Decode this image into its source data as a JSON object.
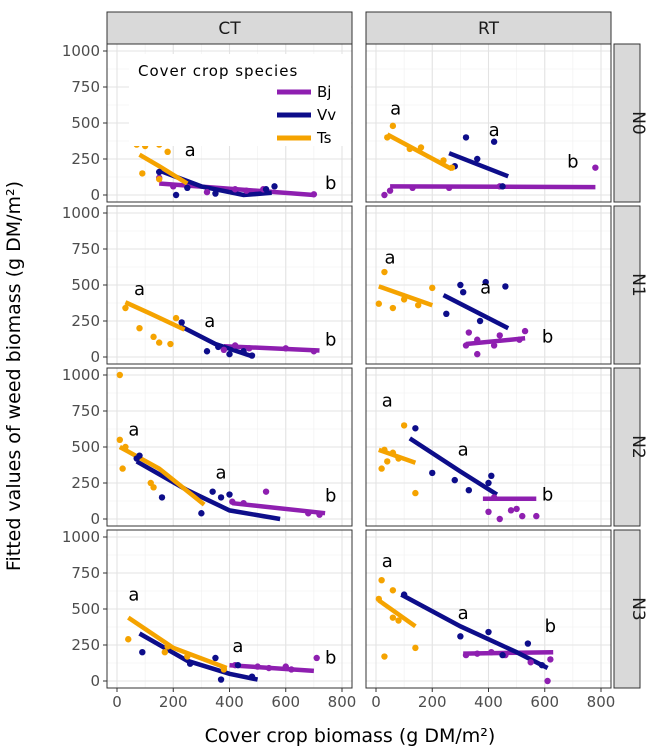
{
  "chart_data": {
    "type": "scatter",
    "xlabel": "Cover crop biomass (g DM/m²)",
    "ylabel": "Fitted values of weed biomass (g DM/m²)",
    "xlim": [
      0,
      800
    ],
    "ylim": [
      0,
      1000
    ],
    "xticks": [
      "0",
      "200",
      "400",
      "600",
      "800"
    ],
    "yticks": [
      "0",
      "250",
      "500",
      "750",
      "1000"
    ],
    "columns": [
      "CT",
      "RT"
    ],
    "rows": [
      "N0",
      "N1",
      "N2",
      "N3"
    ],
    "grid": true,
    "legend": {
      "title": "Cover crop species",
      "position": "inside top-right of CT/N0 panel",
      "entries": [
        {
          "name": "Bj",
          "color": "#8e1fb0"
        },
        {
          "name": "Vv",
          "color": "#0d0d8a"
        },
        {
          "name": "Ts",
          "color": "#f5a300"
        }
      ]
    },
    "panels": [
      {
        "col": "CT",
        "row": "N0",
        "points": {
          "Bj": [
            [
              150,
              120
            ],
            [
              200,
              60
            ],
            [
              320,
              20
            ],
            [
              420,
              40
            ],
            [
              460,
              30
            ],
            [
              520,
              40
            ],
            [
              700,
              5
            ]
          ],
          "Vv": [
            [
              150,
              160
            ],
            [
              210,
              0
            ],
            [
              250,
              50
            ],
            [
              350,
              10
            ],
            [
              530,
              40
            ],
            [
              560,
              60
            ]
          ],
          "Ts": [
            [
              70,
              350
            ],
            [
              90,
              150
            ],
            [
              100,
              340
            ],
            [
              150,
              350
            ],
            [
              150,
              110
            ],
            [
              180,
              300
            ]
          ]
        },
        "lines": {
          "Bj": [
            [
              150,
              80
            ],
            [
              700,
              0
            ]
          ],
          "Vv": [
            [
              150,
              170
            ],
            [
              300,
              60
            ],
            [
              450,
              0
            ],
            [
              550,
              15
            ]
          ],
          "Ts": [
            [
              80,
              280
            ],
            [
              150,
              200
            ],
            [
              250,
              80
            ]
          ]
        },
        "labels": [
          {
            "text": "a",
            "x": 80,
            "y": 430
          },
          {
            "text": "a",
            "x": 260,
            "y": 270
          },
          {
            "text": "b",
            "x": 760,
            "y": 40
          }
        ]
      },
      {
        "col": "RT",
        "row": "N0",
        "points": {
          "Bj": [
            [
              30,
              0
            ],
            [
              50,
              30
            ],
            [
              130,
              50
            ],
            [
              260,
              50
            ],
            [
              440,
              60
            ],
            [
              780,
              190
            ]
          ],
          "Vv": [
            [
              280,
              200
            ],
            [
              320,
              400
            ],
            [
              360,
              250
            ],
            [
              420,
              370
            ],
            [
              450,
              60
            ]
          ],
          "Ts": [
            [
              40,
              400
            ],
            [
              60,
              480
            ],
            [
              120,
              320
            ],
            [
              160,
              330
            ],
            [
              240,
              240
            ],
            [
              270,
              190
            ]
          ]
        },
        "lines": {
          "Bj": [
            [
              50,
              60
            ],
            [
              780,
              55
            ]
          ],
          "Vv": [
            [
              260,
              290
            ],
            [
              470,
              130
            ]
          ],
          "Ts": [
            [
              40,
              420
            ],
            [
              270,
              180
            ]
          ]
        },
        "labels": [
          {
            "text": "a",
            "x": 70,
            "y": 560
          },
          {
            "text": "a",
            "x": 420,
            "y": 410
          },
          {
            "text": "b",
            "x": 700,
            "y": 190
          }
        ]
      },
      {
        "col": "CT",
        "row": "N1",
        "points": {
          "Bj": [
            [
              380,
              50
            ],
            [
              420,
              80
            ],
            [
              470,
              60
            ],
            [
              600,
              60
            ],
            [
              700,
              40
            ]
          ],
          "Vv": [
            [
              230,
              240
            ],
            [
              320,
              40
            ],
            [
              360,
              70
            ],
            [
              400,
              20
            ],
            [
              450,
              40
            ],
            [
              480,
              10
            ]
          ],
          "Ts": [
            [
              30,
              340
            ],
            [
              80,
              200
            ],
            [
              130,
              140
            ],
            [
              150,
              100
            ],
            [
              190,
              90
            ],
            [
              210,
              270
            ]
          ]
        },
        "lines": {
          "Bj": [
            [
              380,
              75
            ],
            [
              720,
              45
            ]
          ],
          "Vv": [
            [
              230,
              210
            ],
            [
              350,
              90
            ],
            [
              480,
              5
            ]
          ],
          "Ts": [
            [
              30,
              380
            ],
            [
              120,
              300
            ],
            [
              240,
              190
            ]
          ]
        },
        "labels": [
          {
            "text": "a",
            "x": 80,
            "y": 430
          },
          {
            "text": "a",
            "x": 330,
            "y": 210
          },
          {
            "text": "b",
            "x": 760,
            "y": 80
          }
        ]
      },
      {
        "col": "RT",
        "row": "N1",
        "points": {
          "Bj": [
            [
              320,
              80
            ],
            [
              330,
              170
            ],
            [
              360,
              20
            ],
            [
              360,
              120
            ],
            [
              420,
              80
            ],
            [
              440,
              150
            ],
            [
              510,
              120
            ],
            [
              530,
              180
            ]
          ],
          "Vv": [
            [
              250,
              300
            ],
            [
              300,
              500
            ],
            [
              310,
              450
            ],
            [
              370,
              250
            ],
            [
              390,
              520
            ],
            [
              460,
              490
            ]
          ],
          "Ts": [
            [
              10,
              370
            ],
            [
              30,
              590
            ],
            [
              60,
              340
            ],
            [
              100,
              400
            ],
            [
              150,
              360
            ],
            [
              200,
              480
            ]
          ]
        },
        "lines": {
          "Bj": [
            [
              320,
              90
            ],
            [
              530,
              130
            ]
          ],
          "Vv": [
            [
              240,
              430
            ],
            [
              470,
              200
            ]
          ],
          "Ts": [
            [
              10,
              490
            ],
            [
              200,
              360
            ]
          ]
        },
        "labels": [
          {
            "text": "a",
            "x": 50,
            "y": 650
          },
          {
            "text": "a",
            "x": 390,
            "y": 440
          },
          {
            "text": "b",
            "x": 610,
            "y": 100
          }
        ]
      },
      {
        "col": "CT",
        "row": "N2",
        "points": {
          "Bj": [
            [
              410,
              120
            ],
            [
              450,
              110
            ],
            [
              530,
              190
            ],
            [
              680,
              40
            ],
            [
              720,
              30
            ]
          ],
          "Vv": [
            [
              70,
              420
            ],
            [
              80,
              440
            ],
            [
              160,
              150
            ],
            [
              300,
              40
            ],
            [
              340,
              190
            ],
            [
              370,
              150
            ],
            [
              400,
              170
            ]
          ],
          "Ts": [
            [
              10,
              1000
            ],
            [
              10,
              550
            ],
            [
              20,
              350
            ],
            [
              30,
              500
            ],
            [
              120,
              250
            ],
            [
              130,
              220
            ]
          ]
        },
        "lines": {
          "Bj": [
            [
              410,
              110
            ],
            [
              740,
              40
            ]
          ],
          "Vv": [
            [
              70,
              400
            ],
            [
              250,
              200
            ],
            [
              400,
              60
            ],
            [
              580,
              0
            ]
          ],
          "Ts": [
            [
              10,
              500
            ],
            [
              150,
              350
            ],
            [
              310,
              100
            ]
          ]
        },
        "labels": [
          {
            "text": "a",
            "x": 60,
            "y": 580
          },
          {
            "text": "a",
            "x": 370,
            "y": 280
          },
          {
            "text": "b",
            "x": 760,
            "y": 120
          }
        ]
      },
      {
        "col": "RT",
        "row": "N2",
        "points": {
          "Bj": [
            [
              400,
              50
            ],
            [
              420,
              150
            ],
            [
              440,
              0
            ],
            [
              480,
              60
            ],
            [
              500,
              70
            ],
            [
              520,
              20
            ],
            [
              570,
              20
            ]
          ],
          "Vv": [
            [
              140,
              630
            ],
            [
              200,
              320
            ],
            [
              280,
              270
            ],
            [
              330,
              200
            ],
            [
              400,
              250
            ],
            [
              410,
              300
            ]
          ],
          "Ts": [
            [
              20,
              350
            ],
            [
              30,
              480
            ],
            [
              40,
              400
            ],
            [
              60,
              460
            ],
            [
              80,
              420
            ],
            [
              100,
              650
            ],
            [
              140,
              180
            ]
          ]
        },
        "lines": {
          "Bj": [
            [
              380,
              140
            ],
            [
              570,
              140
            ]
          ],
          "Vv": [
            [
              120,
              560
            ],
            [
              300,
              330
            ],
            [
              430,
              170
            ]
          ],
          "Ts": [
            [
              10,
              480
            ],
            [
              140,
              390
            ]
          ]
        },
        "labels": [
          {
            "text": "a",
            "x": 40,
            "y": 780
          },
          {
            "text": "a",
            "x": 310,
            "y": 440
          },
          {
            "text": "b",
            "x": 610,
            "y": 130
          }
        ]
      },
      {
        "col": "CT",
        "row": "N3",
        "points": {
          "Bj": [
            [
              420,
              110
            ],
            [
              500,
              100
            ],
            [
              540,
              90
            ],
            [
              600,
              100
            ],
            [
              620,
              80
            ],
            [
              710,
              160
            ]
          ],
          "Vv": [
            [
              90,
              200
            ],
            [
              260,
              120
            ],
            [
              350,
              160
            ],
            [
              370,
              10
            ],
            [
              430,
              110
            ],
            [
              480,
              30
            ]
          ],
          "Ts": [
            [
              40,
              290
            ],
            [
              170,
              200
            ],
            [
              180,
              240
            ],
            [
              250,
              170
            ],
            [
              380,
              80
            ]
          ]
        },
        "lines": {
          "Bj": [
            [
              400,
              110
            ],
            [
              700,
              70
            ]
          ],
          "Vv": [
            [
              80,
              330
            ],
            [
              250,
              140
            ],
            [
              400,
              50
            ],
            [
              500,
              10
            ]
          ],
          "Ts": [
            [
              40,
              440
            ],
            [
              200,
              230
            ],
            [
              390,
              90
            ]
          ]
        },
        "labels": [
          {
            "text": "a",
            "x": 60,
            "y": 560
          },
          {
            "text": "a",
            "x": 430,
            "y": 200
          },
          {
            "text": "b",
            "x": 760,
            "y": 120
          }
        ]
      },
      {
        "col": "RT",
        "row": "N3",
        "points": {
          "Bj": [
            [
              320,
              180
            ],
            [
              360,
              190
            ],
            [
              410,
              200
            ],
            [
              460,
              180
            ],
            [
              550,
              130
            ],
            [
              610,
              0
            ],
            [
              620,
              150
            ]
          ],
          "Vv": [
            [
              100,
              600
            ],
            [
              300,
              310
            ],
            [
              400,
              340
            ],
            [
              450,
              180
            ],
            [
              540,
              260
            ],
            [
              590,
              110
            ]
          ],
          "Ts": [
            [
              10,
              570
            ],
            [
              20,
              700
            ],
            [
              30,
              170
            ],
            [
              60,
              630
            ],
            [
              60,
              440
            ],
            [
              80,
              420
            ],
            [
              140,
              230
            ]
          ]
        },
        "lines": {
          "Bj": [
            [
              310,
              190
            ],
            [
              630,
              200
            ]
          ],
          "Vv": [
            [
              90,
              600
            ],
            [
              300,
              380
            ],
            [
              500,
              200
            ],
            [
              610,
              90
            ]
          ],
          "Ts": [
            [
              10,
              560
            ],
            [
              140,
              380
            ]
          ]
        },
        "labels": [
          {
            "text": "a",
            "x": 40,
            "y": 790
          },
          {
            "text": "a",
            "x": 310,
            "y": 430
          },
          {
            "text": "b",
            "x": 620,
            "y": 340
          }
        ]
      }
    ]
  }
}
